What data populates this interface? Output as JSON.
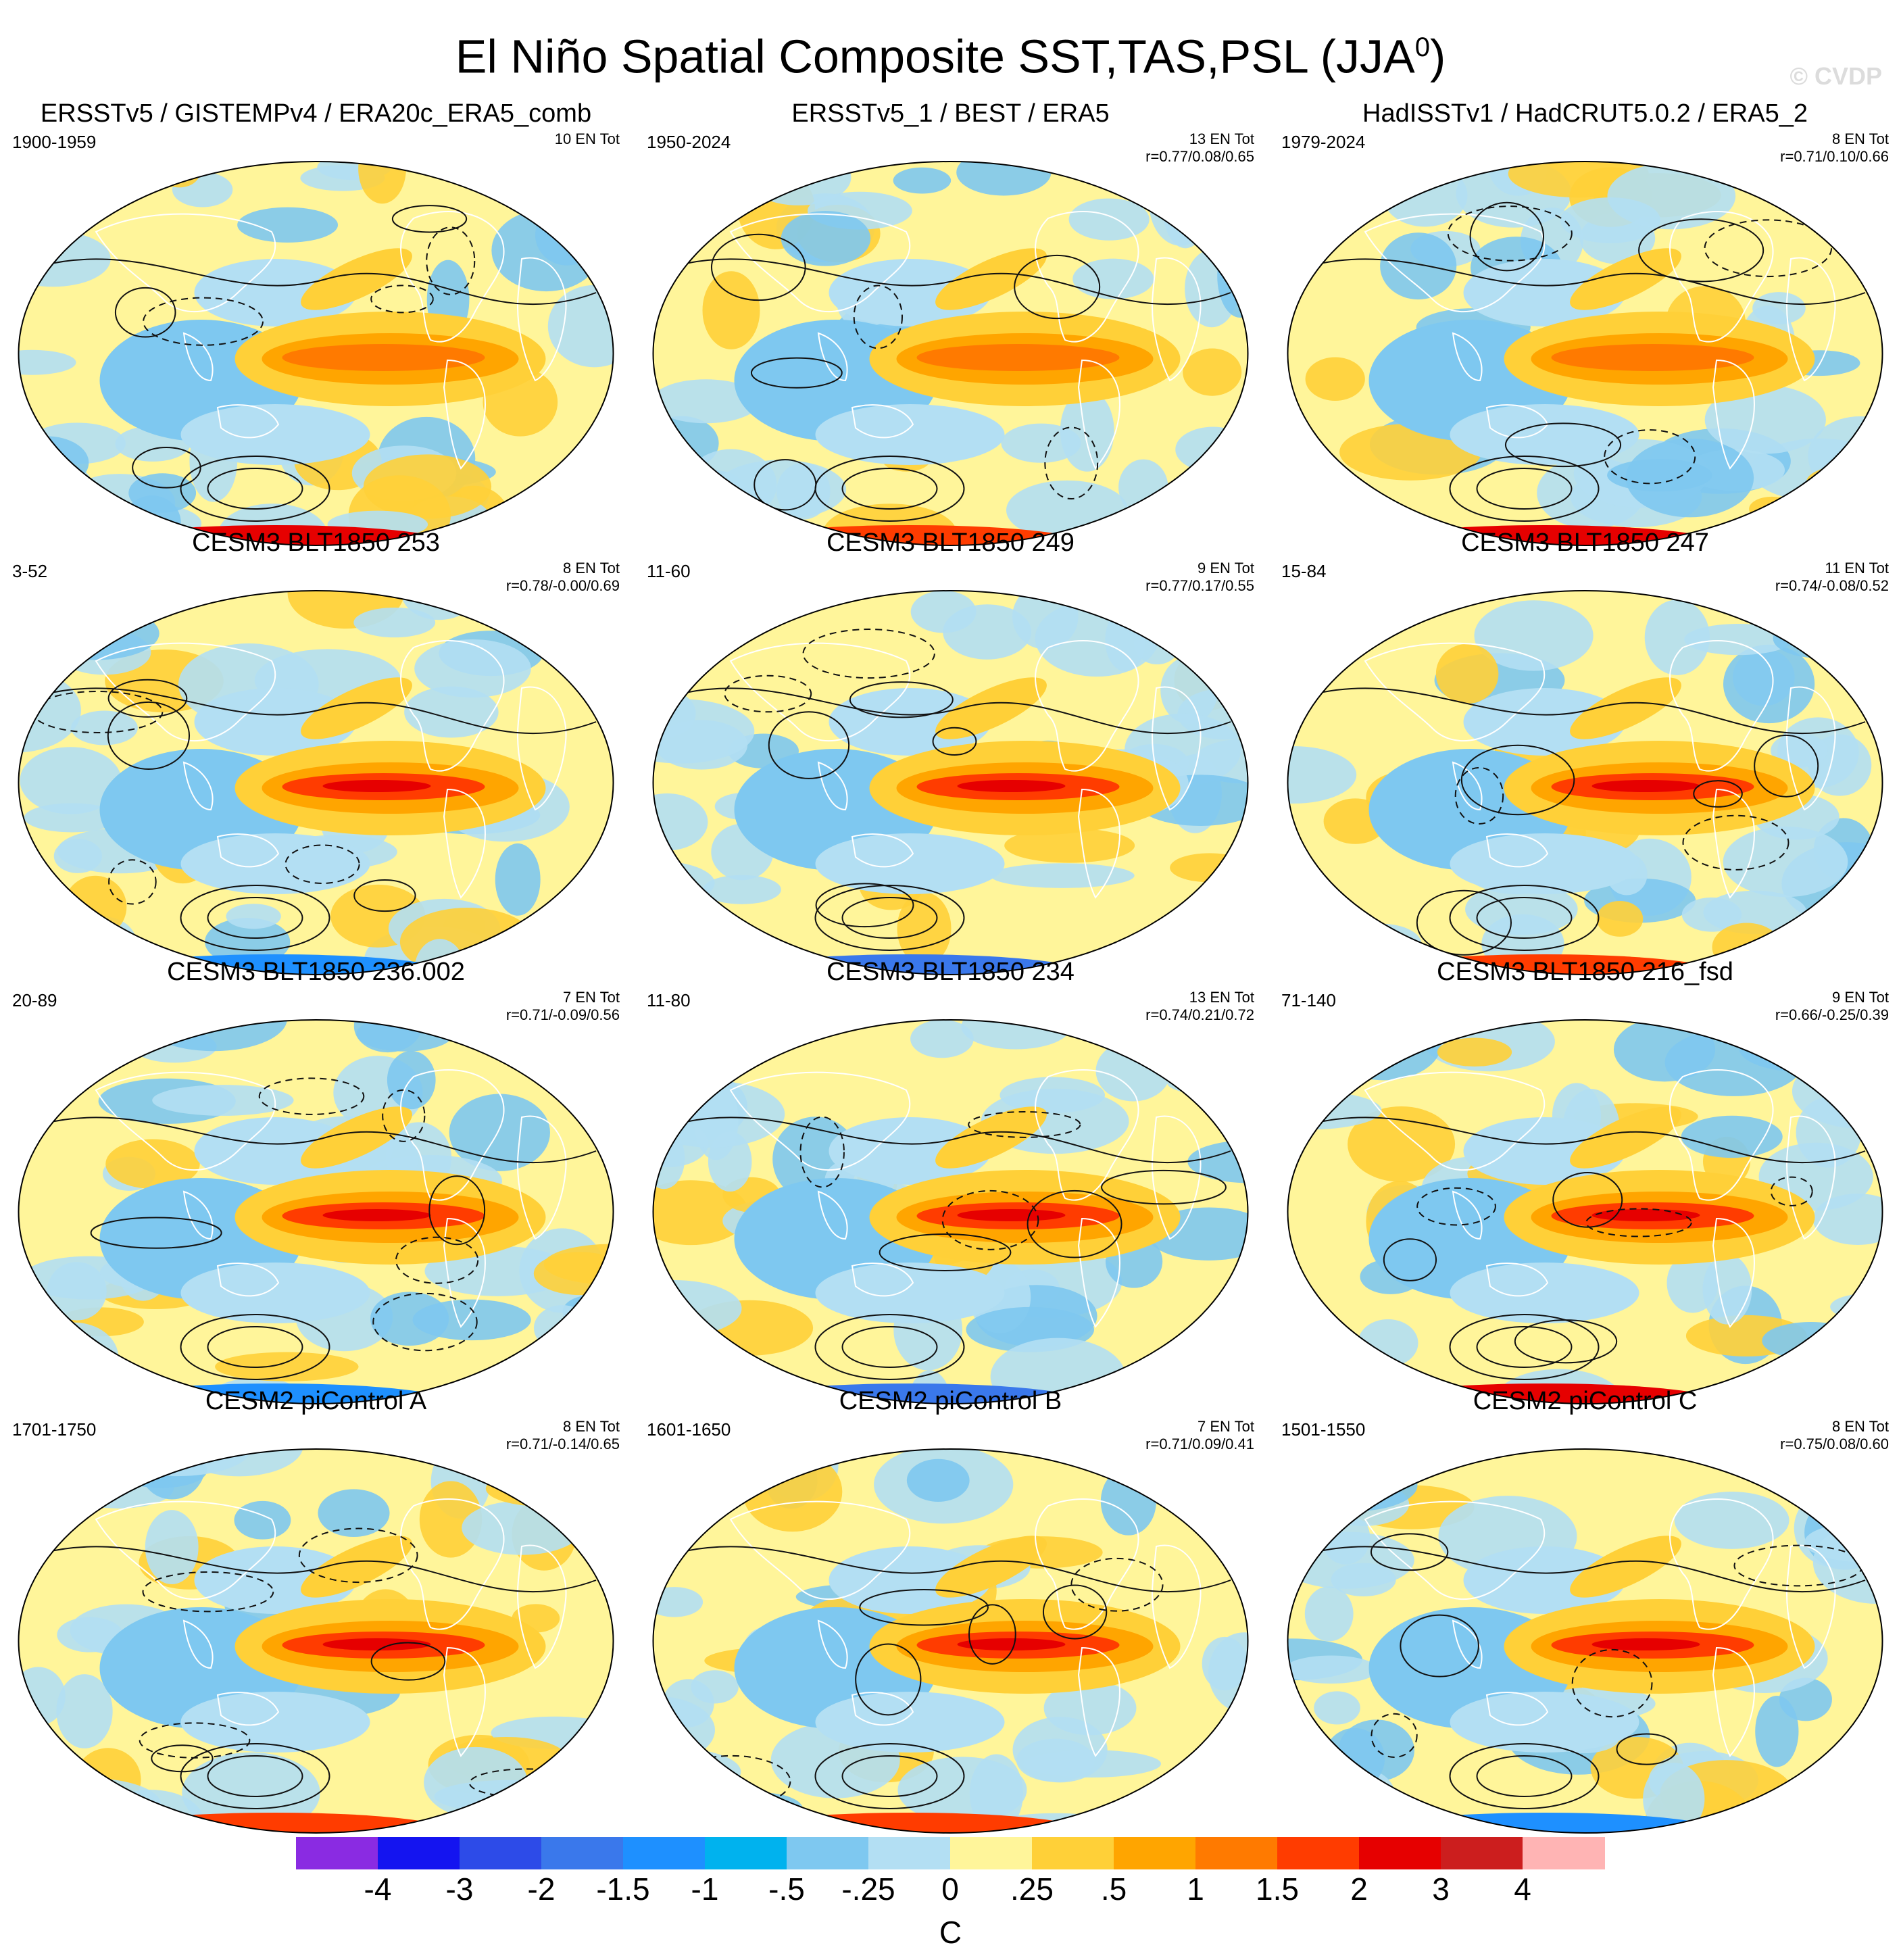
{
  "title": "El Niño Spatial Composite SST,TAS,PSL (JJA",
  "title_superscript": "0",
  "title_close": ")",
  "watermark": "© CVDP",
  "chart_data": {
    "type": "heatmap",
    "projection": "global map composites",
    "panels": [
      {
        "title": "ERSSTv5 / GISTEMPv4 / ERA20c_ERA5_comb",
        "period": "1900-1959",
        "count": "10 EN Tot",
        "corr": "",
        "variant": 0
      },
      {
        "title": "ERSSTv5_1 / BEST / ERA5",
        "period": "1950-2024",
        "count": "13 EN Tot",
        "corr": "r=0.77/0.08/0.65",
        "variant": 1
      },
      {
        "title": "HadISSTv1 / HadCRUT5.0.2 / ERA5_2",
        "period": "1979-2024",
        "count": "8 EN Tot",
        "corr": "r=0.71/0.10/0.66",
        "variant": 2
      },
      {
        "title": "CESM3 BLT1850 253",
        "period": "3-52",
        "count": "8 EN Tot",
        "corr": "r=0.78/-0.00/0.69",
        "variant": 3
      },
      {
        "title": "CESM3 BLT1850 249",
        "period": "11-60",
        "count": "9 EN Tot",
        "corr": "r=0.77/0.17/0.55",
        "variant": 4
      },
      {
        "title": "CESM3 BLT1850 247",
        "period": "15-84",
        "count": "11 EN Tot",
        "corr": "r=0.74/-0.08/0.52",
        "variant": 5
      },
      {
        "title": "CESM3 BLT1850 236.002",
        "period": "20-89",
        "count": "7 EN Tot",
        "corr": "r=0.71/-0.09/0.56",
        "variant": 6
      },
      {
        "title": "CESM3 BLT1850 234",
        "period": "11-80",
        "count": "13 EN Tot",
        "corr": "r=0.74/0.21/0.72",
        "variant": 7
      },
      {
        "title": "CESM3 BLT1850 216_fsd",
        "period": "71-140",
        "count": "9 EN Tot",
        "corr": "r=0.66/-0.25/0.39",
        "variant": 8
      },
      {
        "title": "CESM2 piControl A",
        "period": "1701-1750",
        "count": "8 EN Tot",
        "corr": "r=0.71/-0.14/0.65",
        "variant": 9
      },
      {
        "title": "CESM2 piControl B",
        "period": "1601-1650",
        "count": "7 EN Tot",
        "corr": "r=0.71/0.09/0.41",
        "variant": 10
      },
      {
        "title": "CESM2 piControl C",
        "period": "1501-1550",
        "count": "8 EN Tot",
        "corr": "r=0.75/0.08/0.60",
        "variant": 11
      }
    ],
    "colorbar": {
      "levels": [
        "-4",
        "-3",
        "-2",
        "-1.5",
        "-1",
        "-.5",
        "-.25",
        "0",
        ".25",
        ".5",
        "1",
        "1.5",
        "2",
        "3",
        "4"
      ],
      "colors": [
        "#8a2be2",
        "#1414f0",
        "#2d4be8",
        "#3a78eb",
        "#1e90ff",
        "#00b2ee",
        "#7ec8f0",
        "#b3dff3",
        "#fff59a",
        "#ffd038",
        "#ffa500",
        "#ff7a00",
        "#ff3c00",
        "#e60000",
        "#cc1e1e",
        "#ffb4b4"
      ],
      "units": "C"
    }
  }
}
